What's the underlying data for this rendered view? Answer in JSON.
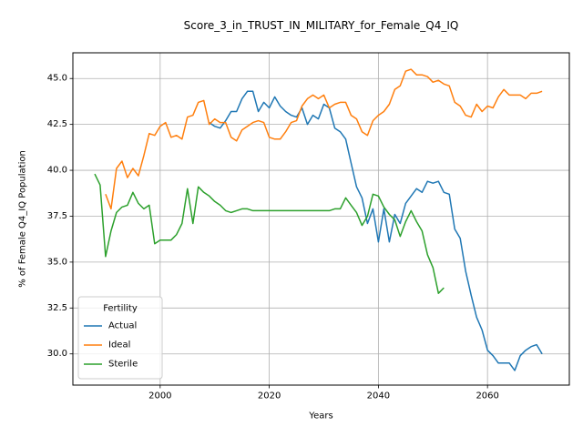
{
  "chart_data": {
    "type": "line",
    "title": "Score_3_in_TRUST_IN_MILITARY_for_Female_Q4_IQ",
    "xlabel": "Years",
    "ylabel": "% of Female Q4_IQ Population",
    "xlim": [
      1984,
      2075
    ],
    "ylim": [
      28.3,
      46.4
    ],
    "xticks": [
      2000,
      2020,
      2040,
      2060
    ],
    "yticks": [
      30.0,
      32.5,
      35.0,
      37.5,
      40.0,
      42.5,
      45.0
    ],
    "xtick_labels": [
      "2000",
      "2020",
      "2040",
      "2060"
    ],
    "ytick_labels": [
      "30.0",
      "32.5",
      "35.0",
      "37.5",
      "40.0",
      "42.5",
      "45.0"
    ],
    "grid": true,
    "legend": {
      "title": "Fertility",
      "position": "lower left"
    },
    "series": [
      {
        "name": "Actual",
        "color": "#1f77b4",
        "x": [
          2009,
          2010,
          2011,
          2012,
          2013,
          2014,
          2015,
          2016,
          2017,
          2018,
          2019,
          2020,
          2021,
          2022,
          2023,
          2024,
          2025,
          2026,
          2027,
          2028,
          2029,
          2030,
          2031,
          2032,
          2033,
          2034,
          2035,
          2036,
          2037,
          2038,
          2039,
          2040,
          2041,
          2042,
          2043,
          2044,
          2045,
          2046,
          2047,
          2048,
          2049,
          2050,
          2051,
          2052,
          2053,
          2054,
          2055,
          2056,
          2057,
          2058,
          2059,
          2060,
          2061,
          2062,
          2063,
          2064,
          2065,
          2066,
          2067,
          2068,
          2069,
          2070
        ],
        "y": [
          42.6,
          42.4,
          42.3,
          42.7,
          43.2,
          43.2,
          43.9,
          44.3,
          44.3,
          43.2,
          43.7,
          43.4,
          44.0,
          43.5,
          43.2,
          43.0,
          42.9,
          43.4,
          42.5,
          43.0,
          42.8,
          43.6,
          43.4,
          42.3,
          42.1,
          41.7,
          40.4,
          39.1,
          38.5,
          37.1,
          37.9,
          36.1,
          37.9,
          36.1,
          37.6,
          37.1,
          38.2,
          38.6,
          39.0,
          38.8,
          39.4,
          39.3,
          39.4,
          38.8,
          38.7,
          36.8,
          36.3,
          34.5,
          33.2,
          32.0,
          31.3,
          30.2,
          29.9,
          29.5,
          29.5,
          29.5,
          29.1,
          29.9,
          30.2,
          30.4,
          30.5,
          30.0
        ]
      },
      {
        "name": "Ideal",
        "color": "#ff7f0e",
        "x": [
          1990,
          1991,
          1992,
          1993,
          1994,
          1995,
          1996,
          1997,
          1998,
          1999,
          2000,
          2001,
          2002,
          2003,
          2004,
          2005,
          2006,
          2007,
          2008,
          2009,
          2010,
          2011,
          2012,
          2013,
          2014,
          2015,
          2016,
          2017,
          2018,
          2019,
          2020,
          2021,
          2022,
          2023,
          2024,
          2025,
          2026,
          2027,
          2028,
          2029,
          2030,
          2031,
          2032,
          2033,
          2034,
          2035,
          2036,
          2037,
          2038,
          2039,
          2040,
          2041,
          2042,
          2043,
          2044,
          2045,
          2046,
          2047,
          2048,
          2049,
          2050,
          2051,
          2052,
          2053,
          2054,
          2055,
          2056,
          2057,
          2058,
          2059,
          2060,
          2061,
          2062,
          2063,
          2064,
          2065,
          2066,
          2067,
          2068,
          2069,
          2070
        ],
        "y": [
          38.7,
          37.9,
          40.1,
          40.5,
          39.6,
          40.1,
          39.7,
          40.8,
          42.0,
          41.9,
          42.4,
          42.6,
          41.8,
          41.9,
          41.7,
          42.9,
          43.0,
          43.7,
          43.8,
          42.5,
          42.8,
          42.6,
          42.6,
          41.8,
          41.6,
          42.2,
          42.4,
          42.6,
          42.7,
          42.6,
          41.8,
          41.7,
          41.7,
          42.1,
          42.6,
          42.7,
          43.5,
          43.9,
          44.1,
          43.9,
          44.1,
          43.4,
          43.6,
          43.7,
          43.7,
          43.0,
          42.8,
          42.1,
          41.9,
          42.7,
          43.0,
          43.2,
          43.6,
          44.4,
          44.6,
          45.4,
          45.5,
          45.2,
          45.2,
          45.1,
          44.8,
          44.9,
          44.7,
          44.6,
          43.7,
          43.5,
          43.0,
          42.9,
          43.6,
          43.2,
          43.5,
          43.4,
          44.0,
          44.4,
          44.1,
          44.1,
          44.1,
          43.9,
          44.2,
          44.2,
          44.3
        ]
      },
      {
        "name": "Sterile",
        "color": "#2ca02c",
        "x": [
          1988,
          1989,
          1990,
          1991,
          1992,
          1993,
          1994,
          1995,
          1996,
          1997,
          1998,
          1999,
          2000,
          2001,
          2002,
          2003,
          2004,
          2005,
          2006,
          2007,
          2008,
          2009,
          2010,
          2011,
          2012,
          2013,
          2014,
          2015,
          2016,
          2017,
          2018,
          2019,
          2020,
          2021,
          2022,
          2023,
          2024,
          2025,
          2026,
          2027,
          2028,
          2029,
          2030,
          2031,
          2032,
          2033,
          2034,
          2035,
          2036,
          2037,
          2038,
          2039,
          2040,
          2041,
          2042,
          2043,
          2044,
          2045,
          2046,
          2047,
          2048,
          2049,
          2050,
          2051,
          2052
        ],
        "y": [
          39.8,
          39.2,
          35.3,
          36.7,
          37.7,
          38.0,
          38.1,
          38.8,
          38.2,
          37.9,
          38.1,
          36.0,
          36.2,
          36.2,
          36.2,
          36.5,
          37.1,
          39.0,
          37.1,
          39.1,
          38.8,
          38.6,
          38.3,
          38.1,
          37.8,
          37.7,
          37.8,
          37.9,
          37.9,
          37.8,
          37.8,
          37.8,
          37.8,
          37.8,
          37.8,
          37.8,
          37.8,
          37.8,
          37.8,
          37.8,
          37.8,
          37.8,
          37.8,
          37.8,
          37.9,
          37.9,
          38.5,
          38.1,
          37.7,
          37.0,
          37.5,
          38.7,
          38.6,
          38.0,
          37.6,
          37.3,
          36.4,
          37.2,
          37.8,
          37.2,
          36.7,
          35.4,
          34.7,
          33.3,
          33.6
        ]
      }
    ]
  }
}
